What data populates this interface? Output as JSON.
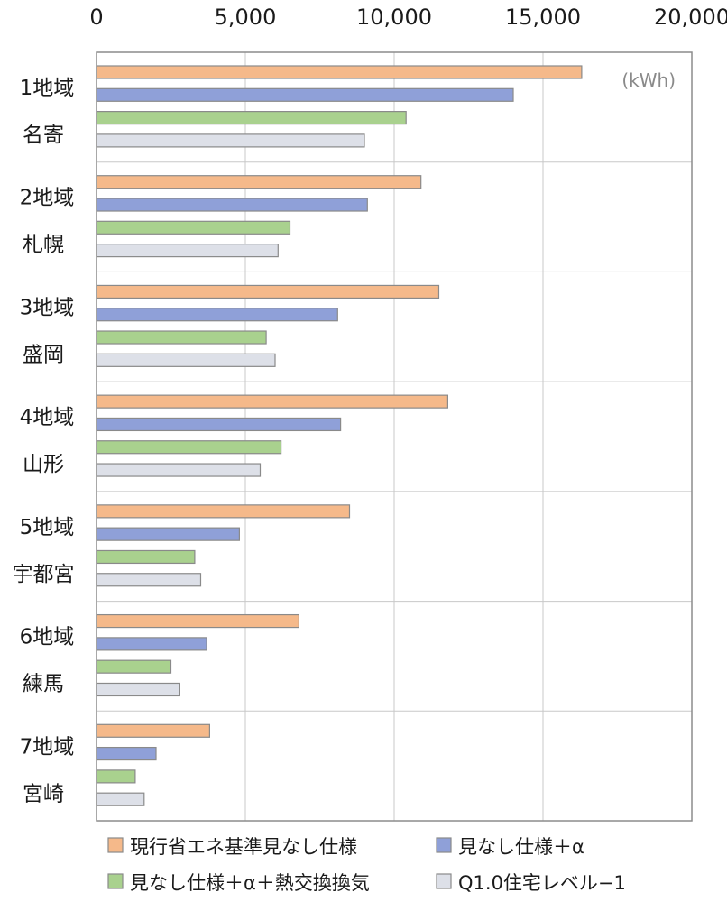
{
  "chart_data": {
    "type": "bar",
    "orientation": "horizontal",
    "unit": "(kWh)",
    "xlim": [
      0,
      20000
    ],
    "x_ticks": [
      "0",
      "5,000",
      "10,000",
      "15,000",
      "20,000"
    ],
    "x_tick_values": [
      0,
      5000,
      10000,
      15000,
      20000
    ],
    "x_axis_position": "top",
    "grid": true,
    "categories": [
      {
        "region": "1地域",
        "city": "名寄"
      },
      {
        "region": "2地域",
        "city": "札幌"
      },
      {
        "region": "3地域",
        "city": "盛岡"
      },
      {
        "region": "4地域",
        "city": "山形"
      },
      {
        "region": "5地域",
        "city": "宇都宮"
      },
      {
        "region": "6地域",
        "city": "練馬"
      },
      {
        "region": "7地域",
        "city": "宮崎"
      }
    ],
    "series": [
      {
        "name": "現行省エネ基準見なし仕様",
        "color": "#f5b98a",
        "values": [
          16300,
          10900,
          11500,
          11800,
          8500,
          6800,
          3800
        ]
      },
      {
        "name": "見なし仕様＋α",
        "color": "#8fa0d8",
        "values": [
          14000,
          9100,
          8100,
          8200,
          4800,
          3700,
          2000
        ]
      },
      {
        "name": "見なし仕様＋α＋熱交換換気",
        "color": "#a9d18e",
        "values": [
          10400,
          6500,
          5700,
          6200,
          3300,
          2500,
          1300
        ]
      },
      {
        "name": "Q1.0住宅レベル−1",
        "color": "#dde0e8",
        "values": [
          9000,
          6100,
          6000,
          5500,
          3500,
          2800,
          1600
        ]
      }
    ],
    "legend_position": "bottom"
  }
}
